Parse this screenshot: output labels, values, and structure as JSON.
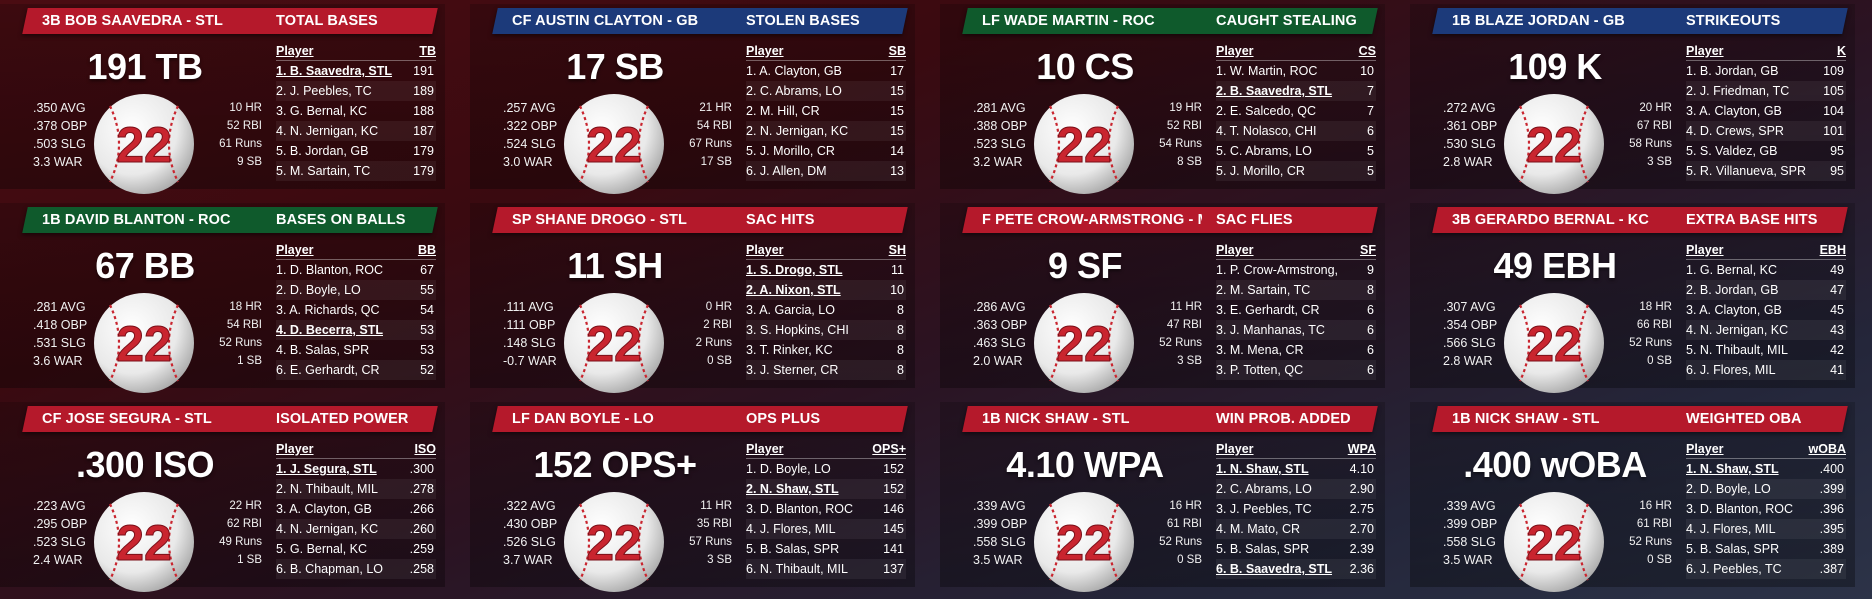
{
  "colors": {
    "stl": "#b5192b",
    "gb": "#1c3a7a",
    "roc": "#0f5a2c",
    "kc": "#b5192b",
    "ball_number": "#c9252f",
    "ball_stitch": "#c9252f"
  },
  "ball_number": "22",
  "cards": [
    {
      "name": "3B BOB SAAVEDRA - STL",
      "category": "TOTAL BASES",
      "banner_color": "#b5192b",
      "big_value": "191 TB",
      "left_stats": [
        ".350 AVG",
        ".378 OBP",
        ".503 SLG",
        "3.3 WAR"
      ],
      "right_stats": [
        "10 HR",
        "52 RBI",
        "61 Runs",
        "9 SB"
      ],
      "col_header": "TB",
      "rows": [
        {
          "player": "1. B. Saavedra, STL",
          "value": "191",
          "hl": true
        },
        {
          "player": "2. J. Peebles, TC",
          "value": "189",
          "hl": false
        },
        {
          "player": "3. G. Bernal, KC",
          "value": "188",
          "hl": false
        },
        {
          "player": "4. N. Jernigan, KC",
          "value": "187",
          "hl": false
        },
        {
          "player": "5. B. Jordan, GB",
          "value": "179",
          "hl": false
        },
        {
          "player": "5. M. Sartain, TC",
          "value": "179",
          "hl": false
        }
      ]
    },
    {
      "name": "CF AUSTIN CLAYTON - GB",
      "category": "STOLEN BASES",
      "banner_color": "#1c3a7a",
      "big_value": "17 SB",
      "left_stats": [
        ".257 AVG",
        ".322 OBP",
        ".524 SLG",
        "3.0 WAR"
      ],
      "right_stats": [
        "21 HR",
        "54 RBI",
        "67 Runs",
        "17 SB"
      ],
      "col_header": "SB",
      "rows": [
        {
          "player": "1. A. Clayton, GB",
          "value": "17",
          "hl": false
        },
        {
          "player": "2. C. Abrams, LO",
          "value": "15",
          "hl": false
        },
        {
          "player": "2. M. Hill, CR",
          "value": "15",
          "hl": false
        },
        {
          "player": "2. N. Jernigan, KC",
          "value": "15",
          "hl": false
        },
        {
          "player": "5. J. Morillo, CR",
          "value": "14",
          "hl": false
        },
        {
          "player": "6. J. Allen, DM",
          "value": "13",
          "hl": false
        }
      ]
    },
    {
      "name": "LF WADE MARTIN - ROC",
      "category": "CAUGHT STEALING",
      "banner_color": "#0f5a2c",
      "big_value": "10 CS",
      "left_stats": [
        ".281 AVG",
        ".388 OBP",
        ".523 SLG",
        "3.2 WAR"
      ],
      "right_stats": [
        "19 HR",
        "52 RBI",
        "54 Runs",
        "8 SB"
      ],
      "col_header": "CS",
      "rows": [
        {
          "player": "1. W. Martin, ROC",
          "value": "10",
          "hl": false
        },
        {
          "player": "2. B. Saavedra, STL",
          "value": "7",
          "hl": true
        },
        {
          "player": "2. E. Salcedo, QC",
          "value": "7",
          "hl": false
        },
        {
          "player": "4. T. Nolasco, CHI",
          "value": "6",
          "hl": false
        },
        {
          "player": "5. C. Abrams, LO",
          "value": "5",
          "hl": false
        },
        {
          "player": "5. J. Morillo, CR",
          "value": "5",
          "hl": false
        }
      ]
    },
    {
      "name": "1B BLAZE JORDAN - GB",
      "category": "STRIKEOUTS",
      "banner_color": "#1c3a7a",
      "big_value": "109 K",
      "left_stats": [
        ".272 AVG",
        ".361 OBP",
        ".530 SLG",
        "2.8 WAR"
      ],
      "right_stats": [
        "20 HR",
        "67 RBI",
        "58 Runs",
        "3 SB"
      ],
      "col_header": "K",
      "rows": [
        {
          "player": "1. B. Jordan, GB",
          "value": "109",
          "hl": false
        },
        {
          "player": "2. J. Friedman, TC",
          "value": "105",
          "hl": false
        },
        {
          "player": "3. A. Clayton, GB",
          "value": "104",
          "hl": false
        },
        {
          "player": "4. D. Crews, SPR",
          "value": "101",
          "hl": false
        },
        {
          "player": "5. S. Valdez, GB",
          "value": "95",
          "hl": false
        },
        {
          "player": "5. R. Villanueva, SPR",
          "value": "95",
          "hl": false
        }
      ]
    },
    {
      "name": "1B DAVID BLANTON - ROC",
      "category": "BASES ON BALLS",
      "banner_color": "#0f5a2c",
      "big_value": "67 BB",
      "left_stats": [
        ".281 AVG",
        ".418 OBP",
        ".531 SLG",
        "3.6 WAR"
      ],
      "right_stats": [
        "18 HR",
        "54 RBI",
        "52 Runs",
        "1 SB"
      ],
      "col_header": "BB",
      "rows": [
        {
          "player": "1. D. Blanton, ROC",
          "value": "67",
          "hl": false
        },
        {
          "player": "2. D. Boyle, LO",
          "value": "55",
          "hl": false
        },
        {
          "player": "3. A. Richards, QC",
          "value": "54",
          "hl": false
        },
        {
          "player": "4. D. Becerra, STL",
          "value": "53",
          "hl": true
        },
        {
          "player": "4. B. Salas, SPR",
          "value": "53",
          "hl": false
        },
        {
          "player": "6. E. Gerhardt, CR",
          "value": "52",
          "hl": false
        }
      ]
    },
    {
      "name": "SP SHANE DROGO - STL",
      "category": "SAC HITS",
      "banner_color": "#b5192b",
      "big_value": "11 SH",
      "left_stats": [
        ".111 AVG",
        ".111 OBP",
        ".148 SLG",
        "-0.7 WAR"
      ],
      "right_stats": [
        "0 HR",
        "2 RBI",
        "2 Runs",
        "0 SB"
      ],
      "col_header": "SH",
      "rows": [
        {
          "player": "1. S. Drogo, STL",
          "value": "11",
          "hl": true
        },
        {
          "player": "2. A. Nixon, STL",
          "value": "10",
          "hl": true
        },
        {
          "player": "3. A. Garcia, LO",
          "value": "8",
          "hl": false
        },
        {
          "player": "3. S. Hopkins, CHI",
          "value": "8",
          "hl": false
        },
        {
          "player": "3. T. Rinker, KC",
          "value": "8",
          "hl": false
        },
        {
          "player": "3. J. Sterner, CR",
          "value": "8",
          "hl": false
        }
      ]
    },
    {
      "name": "F PETE CROW-ARMSTRONG - MI",
      "category": "SAC FLIES",
      "banner_color": "#b5192b",
      "big_value": "9 SF",
      "left_stats": [
        ".286 AVG",
        ".363 OBP",
        ".463 SLG",
        "2.0 WAR"
      ],
      "right_stats": [
        "11 HR",
        "47 RBI",
        "52 Runs",
        "3 SB"
      ],
      "col_header": "SF",
      "rows": [
        {
          "player": "1. P. Crow-Armstrong,",
          "value": "9",
          "hl": false
        },
        {
          "player": "2. M. Sartain, TC",
          "value": "8",
          "hl": false
        },
        {
          "player": "3. E. Gerhardt, CR",
          "value": "6",
          "hl": false
        },
        {
          "player": "3. J. Manhanas, TC",
          "value": "6",
          "hl": false
        },
        {
          "player": "3. M. Mena, CR",
          "value": "6",
          "hl": false
        },
        {
          "player": "3. P. Totten, QC",
          "value": "6",
          "hl": false
        }
      ]
    },
    {
      "name": "3B GERARDO BERNAL - KC",
      "category": "EXTRA BASE HITS",
      "banner_color": "#b5192b",
      "big_value": "49 EBH",
      "left_stats": [
        ".307 AVG",
        ".354 OBP",
        ".566 SLG",
        "2.8 WAR"
      ],
      "right_stats": [
        "18 HR",
        "66 RBI",
        "52 Runs",
        "0 SB"
      ],
      "col_header": "EBH",
      "rows": [
        {
          "player": "1. G. Bernal, KC",
          "value": "49",
          "hl": false
        },
        {
          "player": "2. B. Jordan, GB",
          "value": "47",
          "hl": false
        },
        {
          "player": "3. A. Clayton, GB",
          "value": "45",
          "hl": false
        },
        {
          "player": "4. N. Jernigan, KC",
          "value": "43",
          "hl": false
        },
        {
          "player": "5. N. Thibault, MIL",
          "value": "42",
          "hl": false
        },
        {
          "player": "6. J. Flores, MIL",
          "value": "41",
          "hl": false
        }
      ]
    },
    {
      "name": "CF JOSE SEGURA - STL",
      "category": "ISOLATED POWER",
      "banner_color": "#b5192b",
      "big_value": ".300 ISO",
      "left_stats": [
        ".223 AVG",
        ".295 OBP",
        ".523 SLG",
        "2.4 WAR"
      ],
      "right_stats": [
        "22 HR",
        "62 RBI",
        "49 Runs",
        "1 SB"
      ],
      "col_header": "ISO",
      "rows": [
        {
          "player": "1. J. Segura, STL",
          "value": ".300",
          "hl": true
        },
        {
          "player": "2. N. Thibault, MIL",
          "value": ".278",
          "hl": false
        },
        {
          "player": "3. A. Clayton, GB",
          "value": ".266",
          "hl": false
        },
        {
          "player": "4. N. Jernigan, KC",
          "value": ".260",
          "hl": false
        },
        {
          "player": "5. G. Bernal, KC",
          "value": ".259",
          "hl": false
        },
        {
          "player": "6. B. Chapman, LO",
          "value": ".258",
          "hl": false
        }
      ]
    },
    {
      "name": "LF DAN BOYLE - LO",
      "category": "OPS PLUS",
      "banner_color": "#b5192b",
      "big_value": "152 OPS+",
      "left_stats": [
        ".322 AVG",
        ".430 OBP",
        ".526 SLG",
        "3.7 WAR"
      ],
      "right_stats": [
        "11 HR",
        "35 RBI",
        "57 Runs",
        "3 SB"
      ],
      "col_header": "OPS+",
      "rows": [
        {
          "player": "1. D. Boyle, LO",
          "value": "152",
          "hl": false
        },
        {
          "player": "2. N. Shaw, STL",
          "value": "152",
          "hl": true
        },
        {
          "player": "3. D. Blanton, ROC",
          "value": "146",
          "hl": false
        },
        {
          "player": "4. J. Flores, MIL",
          "value": "145",
          "hl": false
        },
        {
          "player": "5. B. Salas, SPR",
          "value": "141",
          "hl": false
        },
        {
          "player": "6. N. Thibault, MIL",
          "value": "137",
          "hl": false
        }
      ]
    },
    {
      "name": "1B NICK SHAW - STL",
      "category": "WIN PROB. ADDED",
      "banner_color": "#b5192b",
      "big_value": "4.10 WPA",
      "left_stats": [
        ".339 AVG",
        ".399 OBP",
        ".558 SLG",
        "3.5 WAR"
      ],
      "right_stats": [
        "16 HR",
        "61 RBI",
        "52 Runs",
        "0 SB"
      ],
      "col_header": "WPA",
      "rows": [
        {
          "player": "1. N. Shaw, STL",
          "value": "4.10",
          "hl": true
        },
        {
          "player": "2. C. Abrams, LO",
          "value": "2.90",
          "hl": false
        },
        {
          "player": "3. J. Peebles, TC",
          "value": "2.75",
          "hl": false
        },
        {
          "player": "4. M. Mato, CR",
          "value": "2.70",
          "hl": false
        },
        {
          "player": "5. B. Salas, SPR",
          "value": "2.39",
          "hl": false
        },
        {
          "player": "6. B. Saavedra, STL",
          "value": "2.36",
          "hl": true
        }
      ]
    },
    {
      "name": "1B NICK SHAW - STL",
      "category": "WEIGHTED OBA",
      "banner_color": "#b5192b",
      "big_value": ".400 wOBA",
      "left_stats": [
        ".339 AVG",
        ".399 OBP",
        ".558 SLG",
        "3.5 WAR"
      ],
      "right_stats": [
        "16 HR",
        "61 RBI",
        "52 Runs",
        "0 SB"
      ],
      "col_header": "wOBA",
      "rows": [
        {
          "player": "1. N. Shaw, STL",
          "value": ".400",
          "hl": true
        },
        {
          "player": "2. D. Boyle, LO",
          "value": ".399",
          "hl": false
        },
        {
          "player": "3. D. Blanton, ROC",
          "value": ".396",
          "hl": false
        },
        {
          "player": "4. J. Flores, MIL",
          "value": ".395",
          "hl": false
        },
        {
          "player": "5. B. Salas, SPR",
          "value": ".389",
          "hl": false
        },
        {
          "player": "6. J. Peebles, TC",
          "value": ".387",
          "hl": false
        }
      ]
    }
  ],
  "labels": {
    "player_header": "Player"
  }
}
